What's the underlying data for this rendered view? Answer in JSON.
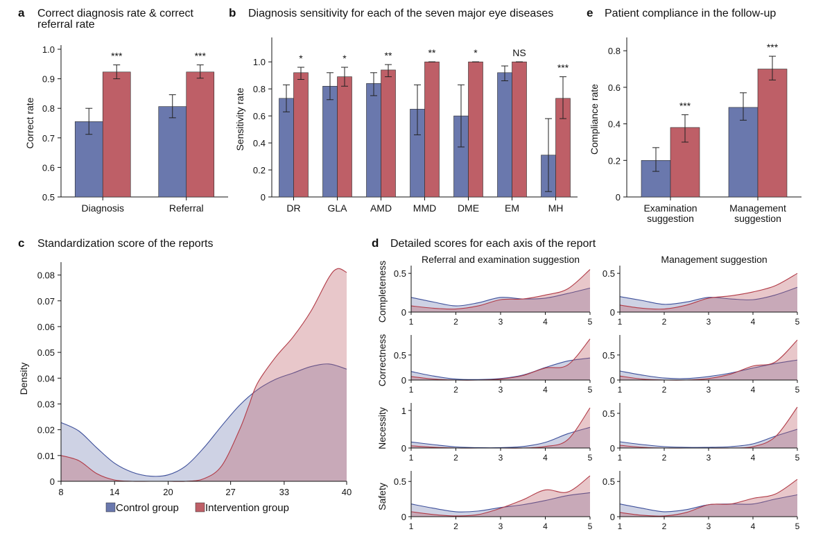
{
  "colors": {
    "control": "#6a78ad",
    "intervention": "#be5f67",
    "control_line": "#3d4f9a",
    "intervention_line": "#b13a46",
    "control_fill": "#c5cadf",
    "intervention_fill": "#e5c3c8",
    "overlap_fill": "#b6a0b0"
  },
  "legend": {
    "control": "Control group",
    "intervention": "Intervention group"
  },
  "chart_data": [
    {
      "id": "a",
      "panel_label": "a",
      "type": "bar",
      "title_lines": [
        "Correct diagnosis rate & correct",
        "referral rate"
      ],
      "ylabel": "Correct rate",
      "ylim": [
        0.5,
        1.0
      ],
      "yticks": [
        0.5,
        0.6,
        0.7,
        0.8,
        0.9,
        1.0
      ],
      "ytick_labels": [
        "0.5",
        "0.6",
        "0.7",
        "0.8",
        "0.9",
        "1.0"
      ],
      "categories": [
        [
          "Diagnosis"
        ],
        [
          "Referral"
        ]
      ],
      "series": [
        {
          "name": "Control group",
          "values": [
            0.755,
            0.806
          ],
          "err_low": [
            0.712,
            0.768
          ],
          "err_high": [
            0.8,
            0.846
          ]
        },
        {
          "name": "Intervention group",
          "values": [
            0.923,
            0.923
          ],
          "err_low": [
            0.9,
            0.902
          ],
          "err_high": [
            0.947,
            0.947
          ]
        }
      ],
      "annotations": [
        "***",
        "***"
      ]
    },
    {
      "id": "b",
      "panel_label": "b",
      "type": "bar",
      "title_lines": [
        "Diagnosis sensitivity for each of the seven major eye diseases"
      ],
      "ylabel": "Sensitivity rate",
      "ylim": [
        0,
        1.15
      ],
      "yticks": [
        0,
        0.2,
        0.4,
        0.6,
        0.8,
        1.0
      ],
      "ytick_labels": [
        "0",
        "0.2",
        "0.4",
        "0.6",
        "0.8",
        "1.0"
      ],
      "categories": [
        [
          "DR"
        ],
        [
          "GLA"
        ],
        [
          "AMD"
        ],
        [
          "MMD"
        ],
        [
          "DME"
        ],
        [
          "EM"
        ],
        [
          "MH"
        ]
      ],
      "series": [
        {
          "name": "Control group",
          "values": [
            0.73,
            0.82,
            0.84,
            0.65,
            0.6,
            0.92,
            0.31
          ],
          "err_low": [
            0.63,
            0.72,
            0.75,
            0.46,
            0.37,
            0.86,
            0.04
          ],
          "err_high": [
            0.83,
            0.92,
            0.92,
            0.83,
            0.83,
            0.97,
            0.58
          ]
        },
        {
          "name": "Intervention group",
          "values": [
            0.92,
            0.89,
            0.94,
            1.0,
            1.0,
            1.0,
            0.73
          ],
          "err_low": [
            0.87,
            0.82,
            0.89,
            1.0,
            1.0,
            1.0,
            0.58
          ],
          "err_high": [
            0.96,
            0.96,
            0.98,
            1.0,
            1.0,
            1.0,
            0.89
          ]
        }
      ],
      "annotations": [
        "*",
        "*",
        "**",
        "**",
        "*",
        "NS",
        "***"
      ]
    },
    {
      "id": "e",
      "panel_label": "e",
      "type": "bar",
      "title_lines": [
        "Patient compliance in the follow-up"
      ],
      "ylabel": "Compliance rate",
      "ylim": [
        0,
        0.85
      ],
      "yticks": [
        0,
        0.2,
        0.4,
        0.6,
        0.8
      ],
      "ytick_labels": [
        "0",
        "0.2",
        "0.4",
        "0.6",
        "0.8"
      ],
      "categories": [
        [
          "Examination",
          "suggestion"
        ],
        [
          "Management",
          "suggestion"
        ]
      ],
      "series": [
        {
          "name": "Control group",
          "values": [
            0.2,
            0.49
          ],
          "err_low": [
            0.14,
            0.42
          ],
          "err_high": [
            0.27,
            0.57
          ]
        },
        {
          "name": "Intervention group",
          "values": [
            0.38,
            0.7
          ],
          "err_low": [
            0.3,
            0.64
          ],
          "err_high": [
            0.45,
            0.77
          ]
        }
      ],
      "annotations": [
        "***",
        "***"
      ]
    },
    {
      "id": "c",
      "panel_label": "c",
      "type": "area",
      "title": "Standardization score of the reports",
      "ylabel": "Density",
      "xlim": [
        8,
        40
      ],
      "ylim": [
        0,
        0.085
      ],
      "xticks": [
        8,
        14,
        20,
        27,
        33,
        40
      ],
      "yticks": [
        0,
        0.01,
        0.02,
        0.03,
        0.04,
        0.05,
        0.06,
        0.07,
        0.08
      ],
      "ytick_labels": [
        "0",
        "0.01",
        "0.02",
        "0.03",
        "0.04",
        "0.05",
        "0.06",
        "0.07",
        "0.08"
      ],
      "series": [
        {
          "name": "Control group",
          "x": [
            8,
            10,
            12,
            14,
            16,
            18,
            20,
            22,
            24,
            26,
            28,
            30,
            32,
            34,
            36,
            38,
            40
          ],
          "y": [
            0.0228,
            0.0195,
            0.013,
            0.007,
            0.0035,
            0.002,
            0.0025,
            0.006,
            0.013,
            0.0215,
            0.0295,
            0.0355,
            0.0395,
            0.042,
            0.0445,
            0.0455,
            0.0435
          ]
        },
        {
          "name": "Intervention group",
          "x": [
            8,
            10,
            12,
            14,
            16,
            18,
            20,
            22,
            24,
            26,
            28,
            29,
            30,
            32,
            34,
            36,
            38,
            39,
            40
          ],
          "y": [
            0.01,
            0.008,
            0.003,
            0.0005,
            0.0,
            0.0,
            0.0,
            0.0,
            0.001,
            0.006,
            0.02,
            0.029,
            0.038,
            0.048,
            0.056,
            0.066,
            0.079,
            0.0825,
            0.081
          ]
        }
      ]
    },
    {
      "id": "d",
      "panel_label": "d",
      "type": "area",
      "title": "Detailed scores for each axis of the report",
      "columns": [
        "Referral and examination suggestion",
        "Management suggestion"
      ],
      "row_labels": [
        "Completeness",
        "Correctness",
        "Necessity",
        "Safety"
      ],
      "xticks": [
        1,
        2,
        3,
        4,
        5
      ],
      "x": [
        1,
        1.5,
        2,
        2.5,
        3,
        3.5,
        4,
        4.5,
        5
      ],
      "cells": [
        {
          "row": 0,
          "col": 0,
          "ylim": [
            0,
            0.6
          ],
          "yticks": [
            0,
            0.5
          ],
          "ytick_labels": [
            "0",
            "0.5"
          ],
          "control": [
            0.19,
            0.13,
            0.08,
            0.12,
            0.19,
            0.17,
            0.18,
            0.24,
            0.31
          ],
          "intervention": [
            0.08,
            0.05,
            0.04,
            0.08,
            0.16,
            0.17,
            0.22,
            0.3,
            0.55
          ]
        },
        {
          "row": 0,
          "col": 1,
          "ylim": [
            0,
            0.6
          ],
          "yticks": [
            0,
            0.5
          ],
          "ytick_labels": [
            "0",
            "0.5"
          ],
          "control": [
            0.2,
            0.15,
            0.1,
            0.13,
            0.19,
            0.17,
            0.16,
            0.22,
            0.32
          ],
          "intervention": [
            0.09,
            0.05,
            0.04,
            0.09,
            0.18,
            0.21,
            0.26,
            0.34,
            0.5
          ]
        },
        {
          "row": 1,
          "col": 0,
          "ylim": [
            0,
            0.9
          ],
          "yticks": [
            0,
            0.5
          ],
          "ytick_labels": [
            "0",
            "0.5"
          ],
          "control": [
            0.17,
            0.08,
            0.02,
            0.01,
            0.03,
            0.1,
            0.25,
            0.38,
            0.44
          ],
          "intervention": [
            0.07,
            0.02,
            0.0,
            0.0,
            0.02,
            0.09,
            0.24,
            0.3,
            0.82
          ]
        },
        {
          "row": 1,
          "col": 1,
          "ylim": [
            0,
            0.9
          ],
          "yticks": [
            0,
            0.5
          ],
          "ytick_labels": [
            "0",
            "0.5"
          ],
          "control": [
            0.18,
            0.1,
            0.04,
            0.03,
            0.07,
            0.14,
            0.24,
            0.33,
            0.4
          ],
          "intervention": [
            0.08,
            0.02,
            0.0,
            0.0,
            0.03,
            0.12,
            0.28,
            0.36,
            0.8
          ]
        },
        {
          "row": 2,
          "col": 0,
          "ylim": [
            0,
            1.2
          ],
          "yticks": [
            0,
            1
          ],
          "ytick_labels": [
            "0",
            "1"
          ],
          "control": [
            0.16,
            0.09,
            0.03,
            0.01,
            0.01,
            0.04,
            0.15,
            0.38,
            0.55
          ],
          "intervention": [
            0.06,
            0.02,
            0.0,
            0.0,
            0.0,
            0.0,
            0.04,
            0.22,
            1.07
          ]
        },
        {
          "row": 2,
          "col": 1,
          "ylim": [
            0,
            0.65
          ],
          "yticks": [
            0,
            0.5
          ],
          "ytick_labels": [
            "0",
            "0.5"
          ],
          "control": [
            0.09,
            0.05,
            0.02,
            0.01,
            0.01,
            0.02,
            0.06,
            0.17,
            0.27
          ],
          "intervention": [
            0.04,
            0.01,
            0.0,
            0.0,
            0.0,
            0.0,
            0.02,
            0.16,
            0.59
          ]
        },
        {
          "row": 3,
          "col": 0,
          "ylim": [
            0,
            0.65
          ],
          "yticks": [
            0,
            0.5
          ],
          "ytick_labels": [
            "0",
            "0.5"
          ],
          "control": [
            0.18,
            0.12,
            0.07,
            0.08,
            0.13,
            0.17,
            0.23,
            0.3,
            0.34
          ],
          "intervention": [
            0.07,
            0.03,
            0.01,
            0.03,
            0.12,
            0.24,
            0.38,
            0.35,
            0.58
          ]
        },
        {
          "row": 3,
          "col": 1,
          "ylim": [
            0,
            0.65
          ],
          "yticks": [
            0,
            0.5
          ],
          "ytick_labels": [
            "0",
            "0.5"
          ],
          "control": [
            0.18,
            0.12,
            0.07,
            0.1,
            0.17,
            0.18,
            0.18,
            0.25,
            0.31
          ],
          "intervention": [
            0.06,
            0.02,
            0.01,
            0.06,
            0.17,
            0.18,
            0.26,
            0.32,
            0.53
          ]
        }
      ]
    }
  ]
}
